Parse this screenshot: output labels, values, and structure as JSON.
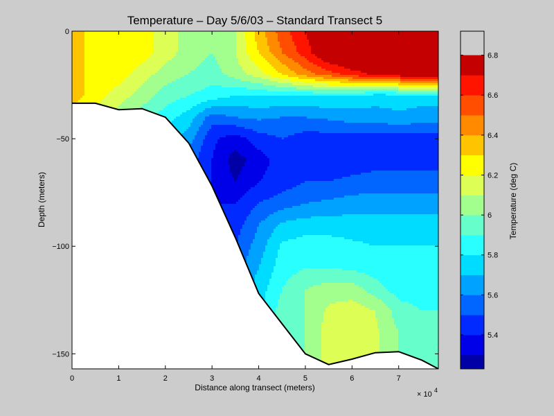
{
  "chart_data": {
    "type": "heatmap",
    "title": "Temperature – Day 5/6/03 – Standard Transect 5",
    "xlabel": "Distance along transect (meters)",
    "ylabel": "Depth (meters)",
    "x_multiplier": "× 10",
    "x_multiplier_exp": "4",
    "xlim": [
      0,
      7.85
    ],
    "ylim": [
      -157,
      0
    ],
    "x_ticks": [
      "0",
      "1",
      "2",
      "3",
      "4",
      "5",
      "6",
      "7"
    ],
    "y_ticks": [
      "0",
      "−50",
      "−100",
      "−150"
    ],
    "colorbar": {
      "label": "Temperature (deg C)",
      "range": [
        5.23,
        6.92
      ],
      "ticks": [
        "5.4",
        "5.6",
        "5.8",
        "6",
        "6.2",
        "6.4",
        "6.6",
        "6.8"
      ],
      "levels": [
        5.2,
        5.3,
        5.4,
        5.5,
        5.6,
        5.7,
        5.8,
        5.9,
        6.0,
        6.1,
        6.2,
        6.3,
        6.4,
        6.5,
        6.6,
        6.7,
        6.8
      ],
      "colors": [
        "#0000a6",
        "#0000e8",
        "#002aff",
        "#0066ff",
        "#00a2ff",
        "#00dcff",
        "#2affff",
        "#66ffcc",
        "#a2ff8e",
        "#ddff55",
        "#ffff00",
        "#ffc400",
        "#ff8a00",
        "#ff4e00",
        "#ff1400",
        "#c40000"
      ]
    },
    "bathymetry": [
      [
        0,
        -33.5
      ],
      [
        0.5,
        -33.5
      ],
      [
        1,
        -36.5
      ],
      [
        1.5,
        -36
      ],
      [
        2,
        -40
      ],
      [
        2.5,
        -52
      ],
      [
        3,
        -72
      ],
      [
        3.5,
        -96
      ],
      [
        4,
        -122
      ],
      [
        4.5,
        -136
      ],
      [
        5,
        -150
      ],
      [
        5.5,
        -155
      ],
      [
        6,
        -152.5
      ],
      [
        6.5,
        -149.5
      ],
      [
        7,
        -149
      ],
      [
        7.5,
        -153
      ],
      [
        7.85,
        -157
      ]
    ],
    "temperature_grid": {
      "x": [
        0,
        0.5,
        1,
        1.5,
        2,
        2.5,
        3,
        3.5,
        4,
        4.5,
        5,
        5.5,
        6,
        6.5,
        7,
        7.5,
        7.85
      ],
      "depth": [
        0,
        -10,
        -20,
        -30,
        -40,
        -50,
        -60,
        -70,
        -80,
        -90,
        -100,
        -110,
        -120,
        -130,
        -140,
        -150,
        -157
      ],
      "values": [
        [
          6.35,
          6.25,
          6.25,
          6.25,
          6.15,
          6.05,
          6.0,
          6.1,
          6.35,
          6.55,
          6.7,
          6.85,
          6.9,
          6.9,
          6.9,
          6.9,
          6.9
        ],
        [
          6.35,
          6.25,
          6.25,
          6.25,
          6.15,
          6.05,
          6.0,
          6.1,
          6.3,
          6.5,
          6.65,
          6.85,
          6.9,
          6.9,
          6.9,
          6.9,
          6.9
        ],
        [
          6.35,
          6.25,
          6.25,
          6.15,
          6.05,
          6.0,
          5.95,
          6.05,
          6.15,
          6.3,
          6.45,
          6.55,
          6.65,
          6.72,
          6.78,
          6.8,
          6.8
        ],
        [
          6.35,
          6.25,
          6.15,
          6.05,
          5.95,
          5.9,
          5.85,
          5.8,
          5.8,
          5.8,
          5.8,
          5.8,
          5.78,
          5.75,
          5.75,
          5.75,
          5.75
        ],
        [
          6.25,
          6.15,
          6.05,
          5.95,
          5.85,
          5.75,
          5.55,
          5.6,
          5.62,
          5.6,
          5.6,
          5.62,
          5.65,
          5.65,
          5.68,
          5.65,
          5.65
        ],
        [
          6.2,
          6.1,
          5.95,
          5.85,
          5.75,
          5.65,
          5.42,
          5.35,
          5.45,
          5.5,
          5.45,
          5.45,
          5.45,
          5.45,
          5.45,
          5.45,
          5.45
        ],
        [
          6.1,
          6.0,
          5.9,
          5.8,
          5.7,
          5.55,
          5.4,
          5.25,
          5.35,
          5.45,
          5.45,
          5.45,
          5.45,
          5.45,
          5.45,
          5.45,
          5.45
        ],
        [
          6.05,
          5.95,
          5.85,
          5.75,
          5.65,
          5.5,
          5.4,
          5.3,
          5.4,
          5.45,
          5.5,
          5.5,
          5.52,
          5.55,
          5.55,
          5.55,
          5.55
        ],
        [
          6.0,
          5.9,
          5.8,
          5.7,
          5.6,
          5.45,
          5.4,
          5.4,
          5.5,
          5.55,
          5.6,
          5.62,
          5.65,
          5.65,
          5.65,
          5.65,
          5.65
        ],
        [
          5.95,
          5.85,
          5.75,
          5.65,
          5.55,
          5.45,
          5.4,
          5.45,
          5.6,
          5.72,
          5.75,
          5.75,
          5.75,
          5.75,
          5.75,
          5.75,
          5.75
        ],
        [
          5.95,
          5.85,
          5.75,
          5.65,
          5.55,
          5.45,
          5.45,
          5.5,
          5.65,
          5.82,
          5.85,
          5.85,
          5.82,
          5.8,
          5.8,
          5.8,
          5.8
        ],
        [
          5.95,
          5.85,
          5.75,
          5.65,
          5.55,
          5.45,
          5.45,
          5.55,
          5.7,
          5.85,
          5.9,
          5.9,
          5.88,
          5.85,
          5.82,
          5.82,
          5.82
        ],
        [
          5.95,
          5.85,
          5.75,
          5.65,
          5.55,
          5.5,
          5.5,
          5.6,
          5.75,
          5.9,
          6.0,
          6.05,
          6.05,
          5.95,
          5.85,
          5.85,
          5.85
        ],
        [
          5.95,
          5.85,
          5.75,
          5.65,
          5.55,
          5.5,
          5.5,
          5.6,
          5.75,
          5.95,
          6.0,
          6.12,
          6.15,
          6.1,
          5.95,
          5.9,
          5.9
        ],
        [
          5.95,
          5.85,
          5.75,
          5.65,
          5.55,
          5.5,
          5.5,
          5.6,
          5.75,
          5.95,
          6.0,
          6.15,
          6.15,
          6.12,
          6.0,
          5.95,
          5.95
        ],
        [
          5.95,
          5.85,
          5.75,
          5.65,
          5.55,
          5.5,
          5.5,
          5.6,
          5.75,
          5.95,
          6.0,
          6.15,
          6.15,
          6.12,
          6.0,
          5.95,
          5.95
        ],
        [
          5.95,
          5.85,
          5.75,
          5.65,
          5.55,
          5.5,
          5.5,
          5.6,
          5.75,
          5.95,
          6.0,
          6.15,
          6.15,
          6.12,
          6.0,
          5.95,
          5.95
        ]
      ]
    }
  }
}
